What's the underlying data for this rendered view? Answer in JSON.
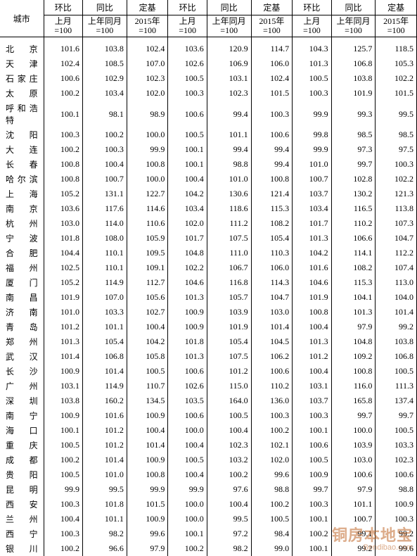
{
  "header": {
    "corner": "城市",
    "groups": [
      {
        "c1": "环比",
        "c2": "同比",
        "c3": "定基"
      },
      {
        "c1": "环比",
        "c2": "同比",
        "c3": "定基"
      },
      {
        "c1": "环比",
        "c2": "同比",
        "c3": "定基"
      }
    ],
    "sub": [
      {
        "c1": "上月\n=100",
        "c2": "上年同月\n=100",
        "c3": "2015年\n=100"
      },
      {
        "c1": "上月\n=100",
        "c2": "上年同月\n=100",
        "c3": "2015年\n=100"
      },
      {
        "c1": "上月\n=100",
        "c2": "上年同月\n=100",
        "c3": "2015年\n=100"
      }
    ]
  },
  "rows": [
    {
      "city": "北京",
      "v": [
        "101.6",
        "103.8",
        "102.4",
        "103.6",
        "120.9",
        "114.7",
        "104.3",
        "125.7",
        "118.5"
      ]
    },
    {
      "city": "天津",
      "v": [
        "102.4",
        "108.5",
        "107.0",
        "102.6",
        "106.9",
        "106.0",
        "101.3",
        "106.8",
        "105.3"
      ]
    },
    {
      "city": "石家庄",
      "v": [
        "100.6",
        "102.9",
        "102.3",
        "100.5",
        "103.1",
        "102.4",
        "100.5",
        "103.8",
        "102.2"
      ]
    },
    {
      "city": "太原",
      "v": [
        "100.2",
        "103.4",
        "102.0",
        "100.3",
        "102.3",
        "101.5",
        "100.3",
        "101.9",
        "101.5"
      ]
    },
    {
      "city": "呼和浩特",
      "v": [
        "100.1",
        "98.1",
        "98.9",
        "100.6",
        "99.4",
        "100.3",
        "99.9",
        "99.3",
        "99.5"
      ]
    },
    {
      "city": "沈阳",
      "v": [
        "100.3",
        "100.2",
        "100.0",
        "100.5",
        "101.1",
        "100.6",
        "99.8",
        "98.5",
        "98.5"
      ]
    },
    {
      "city": "大连",
      "v": [
        "100.2",
        "100.3",
        "99.9",
        "100.1",
        "99.4",
        "99.4",
        "99.9",
        "97.3",
        "97.5"
      ]
    },
    {
      "city": "长春",
      "v": [
        "100.8",
        "100.4",
        "100.8",
        "100.1",
        "98.8",
        "99.4",
        "101.0",
        "99.7",
        "100.3"
      ]
    },
    {
      "city": "哈尔滨",
      "v": [
        "100.8",
        "100.7",
        "100.0",
        "100.4",
        "101.0",
        "100.8",
        "100.7",
        "102.8",
        "102.2"
      ]
    },
    {
      "city": "上海",
      "v": [
        "105.2",
        "131.1",
        "122.7",
        "104.2",
        "130.6",
        "121.4",
        "103.7",
        "130.2",
        "121.3"
      ]
    },
    {
      "city": "南京",
      "v": [
        "103.6",
        "117.6",
        "114.6",
        "103.4",
        "118.6",
        "115.3",
        "103.4",
        "116.5",
        "113.8"
      ]
    },
    {
      "city": "杭州",
      "v": [
        "103.0",
        "114.0",
        "110.6",
        "102.0",
        "111.2",
        "108.2",
        "101.7",
        "110.2",
        "107.3"
      ]
    },
    {
      "city": "宁波",
      "v": [
        "101.8",
        "108.0",
        "105.9",
        "101.7",
        "107.5",
        "105.4",
        "101.3",
        "106.6",
        "104.7"
      ]
    },
    {
      "city": "合肥",
      "v": [
        "104.4",
        "110.1",
        "109.5",
        "104.8",
        "111.0",
        "110.3",
        "104.2",
        "114.1",
        "112.2"
      ]
    },
    {
      "city": "福州",
      "v": [
        "102.5",
        "110.1",
        "109.1",
        "102.2",
        "106.7",
        "106.0",
        "101.6",
        "108.2",
        "107.4"
      ]
    },
    {
      "city": "厦门",
      "v": [
        "105.2",
        "114.9",
        "112.7",
        "104.6",
        "116.8",
        "114.3",
        "104.6",
        "115.3",
        "113.0"
      ]
    },
    {
      "city": "南昌",
      "v": [
        "101.9",
        "107.0",
        "105.6",
        "101.3",
        "105.7",
        "104.7",
        "101.9",
        "104.1",
        "104.0"
      ]
    },
    {
      "city": "济南",
      "v": [
        "101.0",
        "103.3",
        "102.7",
        "100.9",
        "103.9",
        "103.0",
        "100.8",
        "101.3",
        "101.4"
      ]
    },
    {
      "city": "青岛",
      "v": [
        "101.2",
        "101.1",
        "100.4",
        "100.9",
        "101.9",
        "101.4",
        "100.4",
        "97.9",
        "99.2"
      ]
    },
    {
      "city": "郑州",
      "v": [
        "101.3",
        "105.4",
        "104.2",
        "101.8",
        "105.4",
        "104.5",
        "101.3",
        "104.8",
        "103.8"
      ]
    },
    {
      "city": "武汉",
      "v": [
        "101.4",
        "106.8",
        "105.8",
        "101.3",
        "107.5",
        "106.2",
        "101.2",
        "109.2",
        "106.8"
      ]
    },
    {
      "city": "长沙",
      "v": [
        "100.9",
        "101.4",
        "100.5",
        "100.6",
        "101.2",
        "100.6",
        "100.4",
        "100.8",
        "100.5"
      ]
    },
    {
      "city": "广州",
      "v": [
        "103.1",
        "114.9",
        "110.7",
        "102.6",
        "115.0",
        "110.2",
        "103.1",
        "116.0",
        "111.3"
      ]
    },
    {
      "city": "深圳",
      "v": [
        "103.8",
        "160.2",
        "134.5",
        "103.5",
        "164.0",
        "136.0",
        "103.7",
        "165.8",
        "137.4"
      ]
    },
    {
      "city": "南宁",
      "v": [
        "100.9",
        "101.6",
        "100.9",
        "100.6",
        "100.5",
        "100.3",
        "100.3",
        "99.7",
        "99.7"
      ]
    },
    {
      "city": "海口",
      "v": [
        "100.1",
        "101.2",
        "100.4",
        "100.0",
        "100.4",
        "100.2",
        "100.1",
        "100.0",
        "100.5"
      ]
    },
    {
      "city": "重庆",
      "v": [
        "100.5",
        "101.2",
        "101.4",
        "100.4",
        "102.3",
        "102.1",
        "100.6",
        "103.9",
        "103.3"
      ]
    },
    {
      "city": "成都",
      "v": [
        "100.2",
        "101.4",
        "100.9",
        "100.5",
        "103.2",
        "102.0",
        "100.5",
        "103.0",
        "102.3"
      ]
    },
    {
      "city": "贵阳",
      "v": [
        "100.5",
        "101.0",
        "100.8",
        "100.4",
        "100.2",
        "99.6",
        "100.9",
        "100.6",
        "100.6"
      ]
    },
    {
      "city": "昆明",
      "v": [
        "99.9",
        "99.5",
        "99.9",
        "99.9",
        "97.6",
        "98.8",
        "99.7",
        "97.9",
        "98.8"
      ]
    },
    {
      "city": "西安",
      "v": [
        "100.3",
        "101.8",
        "101.5",
        "100.0",
        "100.4",
        "100.2",
        "100.3",
        "101.1",
        "100.9"
      ]
    },
    {
      "city": "兰州",
      "v": [
        "100.4",
        "101.1",
        "100.9",
        "100.0",
        "99.5",
        "100.5",
        "100.1",
        "100.7",
        "100.3"
      ]
    },
    {
      "city": "西宁",
      "v": [
        "100.3",
        "98.2",
        "99.6",
        "100.1",
        "97.2",
        "98.4",
        "100.2",
        "99.1",
        "99.2"
      ]
    },
    {
      "city": "银川",
      "v": [
        "100.2",
        "96.6",
        "97.9",
        "100.2",
        "98.2",
        "99.0",
        "100.1",
        "99.2",
        "99.6"
      ]
    }
  ],
  "watermark": {
    "cn": "铜房本地宝",
    "en": "Bendibao.com"
  }
}
